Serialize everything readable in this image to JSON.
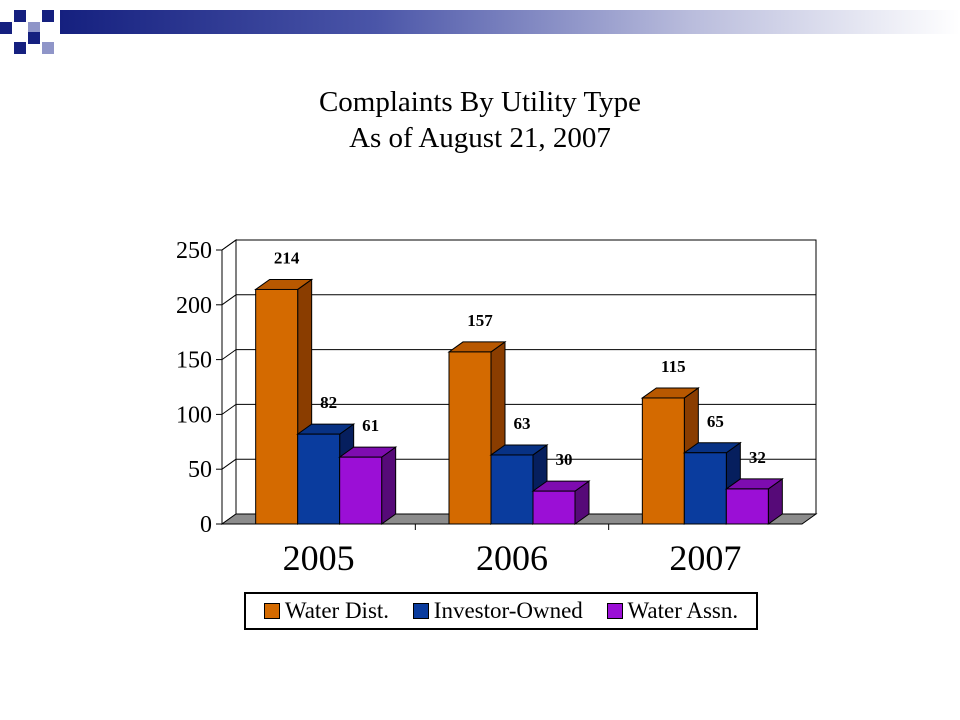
{
  "theme": {
    "band_color": "#15207f",
    "series_colors": [
      "#d46a00",
      "#0a3c9e",
      "#9b0fd6"
    ],
    "side_colors": [
      "#8a3d00",
      "#061f5e",
      "#560a78"
    ],
    "top_colors": [
      "#b85800",
      "#083284",
      "#7e0cb0"
    ],
    "floor_color": "#8c8c8c"
  },
  "chart_data": {
    "type": "bar",
    "title": "Complaints By Utility Type",
    "subtitle": "As of August 21, 2007",
    "categories": [
      "2005",
      "2006",
      "2007"
    ],
    "series": [
      {
        "name": "Water Dist.",
        "values": [
          214,
          157,
          115
        ]
      },
      {
        "name": "Investor-Owned",
        "values": [
          82,
          63,
          65
        ]
      },
      {
        "name": "Water Assn.",
        "values": [
          61,
          30,
          32
        ]
      }
    ],
    "ylim": [
      0,
      250
    ],
    "yticks": [
      "0",
      "50",
      "100",
      "150",
      "200",
      "250"
    ],
    "grid": true,
    "legend_position": "bottom"
  }
}
